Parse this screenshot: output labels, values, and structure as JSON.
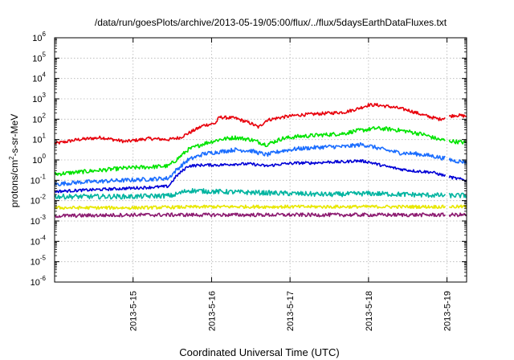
{
  "chart_data": {
    "type": "line",
    "title": "/data/run/goesPlots/archive/2013-05-19/05:00/flux/../flux/5daysEarthDataFluxes.txt",
    "xlabel": "Coordinated Universal Time (UTC)",
    "ylabel": "protons/cm²-s-sr-MeV",
    "ylabel_parts": {
      "pre": "protons/cm",
      "sup": "2",
      "post": "-s-sr-MeV"
    },
    "yscale": "log",
    "ylim_exp": [
      -6,
      6
    ],
    "y_ticks": [
      {
        "base": "10",
        "exp": "-6"
      },
      {
        "base": "10",
        "exp": "-5"
      },
      {
        "base": "10",
        "exp": "-4"
      },
      {
        "base": "10",
        "exp": "-3"
      },
      {
        "base": "10",
        "exp": "-2"
      },
      {
        "base": "10",
        "exp": "-1"
      },
      {
        "base": "10",
        "exp": "0"
      },
      {
        "base": "10",
        "exp": "1"
      },
      {
        "base": "10",
        "exp": "2"
      },
      {
        "base": "10",
        "exp": "3"
      },
      {
        "base": "10",
        "exp": "4"
      },
      {
        "base": "10",
        "exp": "5"
      },
      {
        "base": "10",
        "exp": "6"
      }
    ],
    "x_unit": "days",
    "xlim": [
      14.0,
      19.25
    ],
    "x_ticks": [
      {
        "label": "2013-5-15",
        "day": 15
      },
      {
        "label": "2013-5-16",
        "day": 16
      },
      {
        "label": "2013-5-17",
        "day": 17
      },
      {
        "label": "2013-5-18",
        "day": 18
      },
      {
        "label": "2013-5-19",
        "day": 19
      }
    ],
    "grid": true,
    "data_gap": [
      18.98,
      19.02
    ],
    "series": [
      {
        "color": "#e8000b",
        "noise": 0.08,
        "x": [
          14.0,
          14.3,
          14.6,
          14.9,
          15.2,
          15.45,
          15.6,
          15.75,
          15.9,
          16.05,
          16.1,
          16.3,
          16.5,
          16.6,
          16.7,
          16.9,
          17.1,
          17.3,
          17.5,
          17.7,
          17.75,
          17.85,
          18.0,
          18.1,
          18.3,
          18.5,
          18.7,
          18.9,
          19.1,
          19.25
        ],
        "y_exp": [
          0.8,
          1.0,
          1.1,
          0.9,
          1.05,
          1.0,
          1.1,
          1.4,
          1.7,
          1.8,
          2.1,
          2.05,
          1.8,
          1.6,
          1.95,
          2.1,
          2.2,
          2.25,
          2.3,
          2.35,
          2.4,
          2.5,
          2.7,
          2.7,
          2.6,
          2.45,
          2.2,
          2.0,
          2.2,
          2.15
        ]
      },
      {
        "color": "#00e400",
        "noise": 0.1,
        "x": [
          14.0,
          14.3,
          14.6,
          14.9,
          15.2,
          15.45,
          15.55,
          15.7,
          15.9,
          16.1,
          16.3,
          16.5,
          16.7,
          16.9,
          17.1,
          17.3,
          17.5,
          17.7,
          17.8,
          17.9,
          18.0,
          18.1,
          18.3,
          18.5,
          18.7,
          18.9,
          19.1,
          19.25
        ],
        "y_exp": [
          -0.7,
          -0.6,
          -0.5,
          -0.4,
          -0.35,
          -0.3,
          0.0,
          0.5,
          0.8,
          1.0,
          1.1,
          1.0,
          0.75,
          1.05,
          1.15,
          1.2,
          1.25,
          1.3,
          1.4,
          1.45,
          1.5,
          1.55,
          1.5,
          1.4,
          1.25,
          1.0,
          0.9,
          0.85
        ]
      },
      {
        "color": "#1a6dff",
        "noise": 0.1,
        "x": [
          14.0,
          14.3,
          14.6,
          14.9,
          15.2,
          15.45,
          15.55,
          15.7,
          15.9,
          16.1,
          16.3,
          16.5,
          16.7,
          16.9,
          17.1,
          17.3,
          17.5,
          17.7,
          17.8,
          17.9,
          18.0,
          18.2,
          18.4,
          18.6,
          18.8,
          19.0,
          19.1,
          19.25
        ],
        "y_exp": [
          -1.2,
          -1.1,
          -1.05,
          -1.0,
          -0.95,
          -0.9,
          -0.5,
          0.0,
          0.3,
          0.4,
          0.5,
          0.45,
          0.25,
          0.45,
          0.55,
          0.6,
          0.65,
          0.65,
          0.7,
          0.75,
          0.7,
          0.5,
          0.35,
          0.3,
          0.2,
          0.05,
          -0.05,
          -0.1
        ]
      },
      {
        "color": "#0000d6",
        "noise": 0.07,
        "x": [
          14.0,
          14.3,
          14.6,
          14.9,
          15.2,
          15.45,
          15.55,
          15.7,
          15.9,
          16.1,
          16.3,
          16.5,
          16.7,
          16.9,
          17.1,
          17.3,
          17.5,
          17.7,
          17.8,
          17.9,
          18.0,
          18.2,
          18.4,
          18.6,
          18.8,
          19.0,
          19.1,
          19.25
        ],
        "y_exp": [
          -1.55,
          -1.5,
          -1.45,
          -1.4,
          -1.35,
          -1.3,
          -0.8,
          -0.3,
          -0.25,
          -0.25,
          -0.2,
          -0.2,
          -0.3,
          -0.2,
          -0.15,
          -0.15,
          -0.1,
          -0.1,
          -0.05,
          -0.05,
          -0.1,
          -0.3,
          -0.45,
          -0.55,
          -0.6,
          -0.8,
          -0.9,
          -1.0
        ]
      },
      {
        "color": "#00b4a0",
        "noise": 0.12,
        "x": [
          14.0,
          14.5,
          15.0,
          15.5,
          15.7,
          16.0,
          16.5,
          17.0,
          17.5,
          18.0,
          18.5,
          19.0,
          19.25
        ],
        "y_exp": [
          -1.8,
          -1.8,
          -1.8,
          -1.75,
          -1.5,
          -1.55,
          -1.6,
          -1.65,
          -1.7,
          -1.65,
          -1.7,
          -1.75,
          -1.75
        ]
      },
      {
        "color": "#e8e800",
        "noise": 0.08,
        "x": [
          14.0,
          15.0,
          16.0,
          17.0,
          18.0,
          19.0,
          19.25
        ],
        "y_exp": [
          -2.35,
          -2.35,
          -2.3,
          -2.3,
          -2.3,
          -2.3,
          -2.3
        ]
      },
      {
        "color": "#8c1a70",
        "noise": 0.09,
        "x": [
          14.0,
          15.0,
          16.0,
          17.0,
          18.0,
          19.0,
          19.25
        ],
        "y_exp": [
          -2.75,
          -2.7,
          -2.7,
          -2.7,
          -2.7,
          -2.7,
          -2.7
        ]
      }
    ]
  }
}
